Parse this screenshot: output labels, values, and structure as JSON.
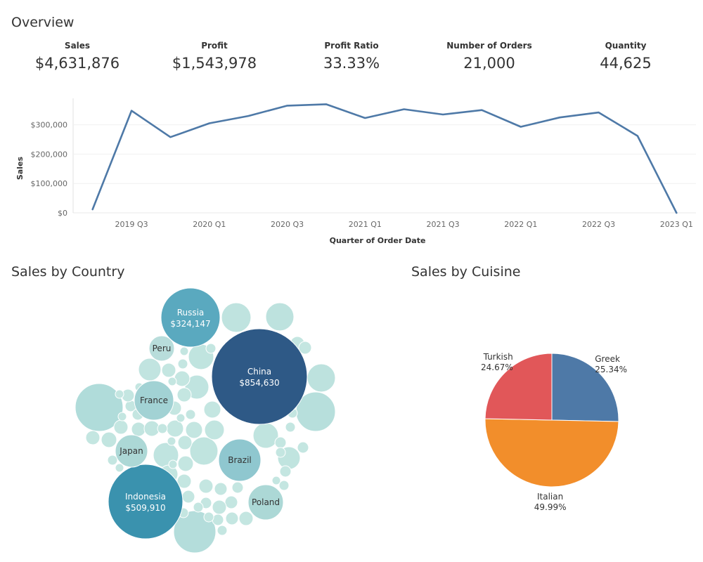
{
  "overview": {
    "title": "Overview",
    "kpis": [
      {
        "label": "Sales",
        "value": "$4,631,876"
      },
      {
        "label": "Profit",
        "value": "$1,543,978"
      },
      {
        "label": "Profit Ratio",
        "value": "33.33%"
      },
      {
        "label": "Number of Orders",
        "value": "21,000"
      },
      {
        "label": "Quantity",
        "value": "44,625"
      }
    ]
  },
  "country_section": {
    "title": "Sales by Country"
  },
  "cuisine_section": {
    "title": "Sales by Cuisine"
  },
  "chart_data": [
    {
      "type": "line",
      "xlabel": "Quarter of Order Date",
      "ylabel": "Sales",
      "x": [
        "2019 Q2",
        "2019 Q3",
        "2019 Q4",
        "2020 Q1",
        "2020 Q2",
        "2020 Q3",
        "2020 Q4",
        "2021 Q1",
        "2021 Q2",
        "2021 Q3",
        "2021 Q4",
        "2022 Q1",
        "2022 Q2",
        "2022 Q3",
        "2022 Q4",
        "2023 Q1"
      ],
      "x_tick_labels": [
        "2019 Q3",
        "2020 Q1",
        "2020 Q3",
        "2021 Q1",
        "2021 Q3",
        "2022 Q1",
        "2022 Q3",
        "2023 Q1"
      ],
      "series": [
        {
          "values": [
            12000,
            348000,
            258000,
            305000,
            330000,
            365000,
            370000,
            323000,
            353000,
            335000,
            350000,
            293000,
            325000,
            342000,
            262000,
            0
          ]
        }
      ],
      "ylim": [
        0,
        390000
      ],
      "y_ticks": [
        {
          "value": 0,
          "label": "$0"
        },
        {
          "value": 100000,
          "label": "$100,000"
        },
        {
          "value": 200000,
          "label": "$200,000"
        },
        {
          "value": 300000,
          "label": "$300,000"
        }
      ],
      "color": "#4e79a7",
      "grid": true
    },
    {
      "type": "bubble",
      "labeled_bubbles": [
        {
          "country": "China",
          "value": 854630,
          "value_label": "$854,630",
          "color": "#2e5986"
        },
        {
          "country": "Indonesia",
          "value": 509910,
          "value_label": "$509,910",
          "color": "#3a92ae"
        },
        {
          "country": "Russia",
          "value": 324147,
          "value_label": "$324,147",
          "color": "#5aa9bf"
        },
        {
          "country": "Brazil",
          "value_label": "",
          "color": "#8fc7cf"
        },
        {
          "country": "France",
          "value_label": "",
          "color": "#a2d2d4"
        },
        {
          "country": "Japan",
          "value_label": "",
          "color": "#acd8d6"
        },
        {
          "country": "Poland",
          "value_label": "",
          "color": "#acd8d6"
        },
        {
          "country": "Peru",
          "value_label": "",
          "color": "#b8dddb"
        }
      ],
      "color_scale": [
        "#c4e6e1",
        "#2e5986"
      ]
    },
    {
      "type": "pie",
      "slices": [
        {
          "label": "Greek",
          "percent": 25.34,
          "percent_label": "25.34%",
          "color": "#4e79a7"
        },
        {
          "label": "Italian",
          "percent": 49.99,
          "percent_label": "49.99%",
          "color": "#f28e2b"
        },
        {
          "label": "Turkish",
          "percent": 24.67,
          "percent_label": "24.67%",
          "color": "#e15759"
        }
      ]
    }
  ]
}
